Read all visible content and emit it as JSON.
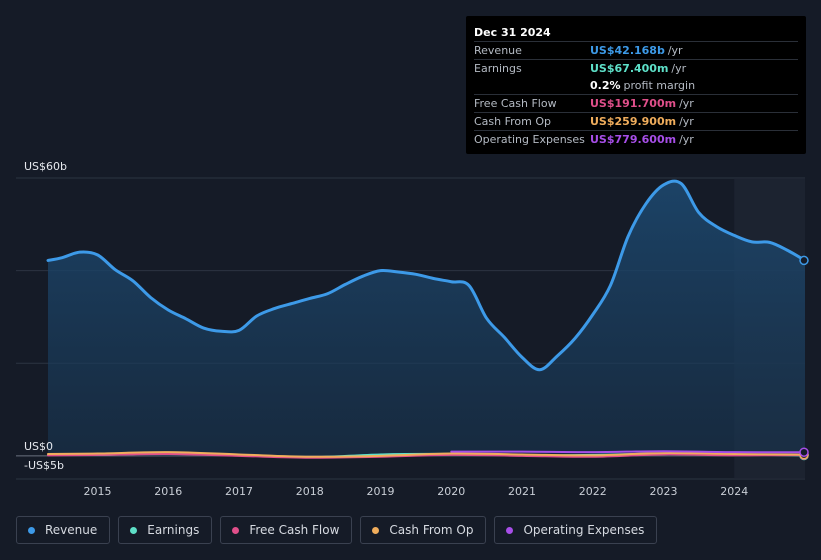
{
  "tooltip": {
    "date": "Dec 31 2024",
    "rows": [
      {
        "label": "Revenue",
        "value": "US$42.168b",
        "unit": "/yr",
        "color": "#3d9ae8"
      },
      {
        "label": "Earnings",
        "value": "US$67.400m",
        "unit": "/yr",
        "color": "#5ee0c8"
      },
      {
        "label": "",
        "value": "0.2%",
        "unit": "profit margin",
        "color": "#ffffff"
      },
      {
        "label": "Free Cash Flow",
        "value": "US$191.700m",
        "unit": "/yr",
        "color": "#e04f8a"
      },
      {
        "label": "Cash From Op",
        "value": "US$259.900m",
        "unit": "/yr",
        "color": "#f0ad5c"
      },
      {
        "label": "Operating Expenses",
        "value": "US$779.600m",
        "unit": "/yr",
        "color": "#a74ee8"
      }
    ]
  },
  "legend": [
    {
      "label": "Revenue",
      "color": "#3d9ae8",
      "icon": "revenue-dot-icon"
    },
    {
      "label": "Earnings",
      "color": "#5ee0c8",
      "icon": "earnings-dot-icon"
    },
    {
      "label": "Free Cash Flow",
      "color": "#e04f8a",
      "icon": "free-cash-flow-dot-icon"
    },
    {
      "label": "Cash From Op",
      "color": "#f0ad5c",
      "icon": "cash-from-op-dot-icon"
    },
    {
      "label": "Operating Expenses",
      "color": "#a74ee8",
      "icon": "operating-expenses-dot-icon"
    }
  ],
  "chart_data": {
    "type": "area",
    "title": "",
    "xlabel": "",
    "ylabel": "",
    "ylim": [
      -5,
      60
    ],
    "xlim": [
      2014.3,
      2025.0
    ],
    "y_tick_labels": [
      {
        "value": 60,
        "label": "US$60b"
      },
      {
        "value": 0,
        "label": "US$0"
      },
      {
        "value": -5,
        "label": "-US$5b"
      }
    ],
    "x_ticks": [
      2015,
      2016,
      2017,
      2018,
      2019,
      2020,
      2021,
      2022,
      2023,
      2024
    ],
    "grid": true,
    "legend_position": "bottom",
    "highlight_region": [
      2024.0,
      2025.0
    ],
    "series": [
      {
        "name": "Revenue",
        "color": "#3d9ae8",
        "fill": true,
        "points": [
          [
            2014.3,
            42.2
          ],
          [
            2014.5,
            42.8
          ],
          [
            2014.75,
            44.0
          ],
          [
            2015.0,
            43.4
          ],
          [
            2015.25,
            40.2
          ],
          [
            2015.5,
            37.8
          ],
          [
            2015.75,
            34.2
          ],
          [
            2016.0,
            31.5
          ],
          [
            2016.25,
            29.6
          ],
          [
            2016.5,
            27.6
          ],
          [
            2016.75,
            26.9
          ],
          [
            2017.0,
            27.1
          ],
          [
            2017.25,
            30.2
          ],
          [
            2017.5,
            31.8
          ],
          [
            2017.75,
            32.9
          ],
          [
            2018.0,
            34.0
          ],
          [
            2018.25,
            35.0
          ],
          [
            2018.5,
            37.0
          ],
          [
            2018.75,
            38.8
          ],
          [
            2019.0,
            40.0
          ],
          [
            2019.25,
            39.7
          ],
          [
            2019.5,
            39.2
          ],
          [
            2019.75,
            38.3
          ],
          [
            2020.0,
            37.6
          ],
          [
            2020.25,
            36.8
          ],
          [
            2020.5,
            29.7
          ],
          [
            2020.75,
            25.6
          ],
          [
            2021.0,
            21.3
          ],
          [
            2021.25,
            18.6
          ],
          [
            2021.5,
            21.6
          ],
          [
            2021.75,
            25.4
          ],
          [
            2022.0,
            30.5
          ],
          [
            2022.25,
            36.8
          ],
          [
            2022.5,
            47.4
          ],
          [
            2022.75,
            54.4
          ],
          [
            2023.0,
            58.5
          ],
          [
            2023.25,
            58.8
          ],
          [
            2023.5,
            52.5
          ],
          [
            2023.75,
            49.5
          ],
          [
            2024.0,
            47.6
          ],
          [
            2024.25,
            46.2
          ],
          [
            2024.5,
            46.1
          ],
          [
            2024.75,
            44.4
          ],
          [
            2025.0,
            42.2
          ]
        ]
      },
      {
        "name": "Earnings",
        "color": "#5ee0c8",
        "fill": false,
        "points": [
          [
            2014.3,
            0.3
          ],
          [
            2015.0,
            0.2
          ],
          [
            2016.0,
            0.5
          ],
          [
            2017.0,
            0.1
          ],
          [
            2018.0,
            -0.3
          ],
          [
            2019.0,
            0.3
          ],
          [
            2020.0,
            0.4
          ],
          [
            2021.0,
            0.1
          ],
          [
            2022.0,
            0.2
          ],
          [
            2023.0,
            0.5
          ],
          [
            2024.0,
            0.3
          ],
          [
            2025.0,
            0.07
          ]
        ]
      },
      {
        "name": "Free Cash Flow",
        "color": "#e04f8a",
        "fill": false,
        "points": [
          [
            2014.3,
            0.1
          ],
          [
            2015.0,
            0.2
          ],
          [
            2016.0,
            0.4
          ],
          [
            2017.0,
            0.0
          ],
          [
            2018.0,
            -0.4
          ],
          [
            2019.0,
            -0.2
          ],
          [
            2020.0,
            0.2
          ],
          [
            2021.0,
            0.0
          ],
          [
            2022.0,
            -0.2
          ],
          [
            2023.0,
            0.3
          ],
          [
            2024.0,
            0.1
          ],
          [
            2025.0,
            0.19
          ]
        ]
      },
      {
        "name": "Cash From Op",
        "color": "#f0ad5c",
        "fill": false,
        "points": [
          [
            2014.3,
            0.4
          ],
          [
            2015.0,
            0.5
          ],
          [
            2016.0,
            0.8
          ],
          [
            2017.0,
            0.3
          ],
          [
            2018.0,
            -0.2
          ],
          [
            2019.0,
            0.0
          ],
          [
            2020.0,
            0.5
          ],
          [
            2021.0,
            0.3
          ],
          [
            2022.0,
            0.1
          ],
          [
            2023.0,
            0.6
          ],
          [
            2024.0,
            0.4
          ],
          [
            2025.0,
            0.26
          ]
        ]
      },
      {
        "name": "Operating Expenses",
        "color": "#a74ee8",
        "fill": false,
        "points": [
          [
            2020.0,
            0.9
          ],
          [
            2021.0,
            0.9
          ],
          [
            2022.0,
            0.8
          ],
          [
            2023.0,
            1.0
          ],
          [
            2024.0,
            0.8
          ],
          [
            2025.0,
            0.78
          ]
        ]
      }
    ]
  }
}
